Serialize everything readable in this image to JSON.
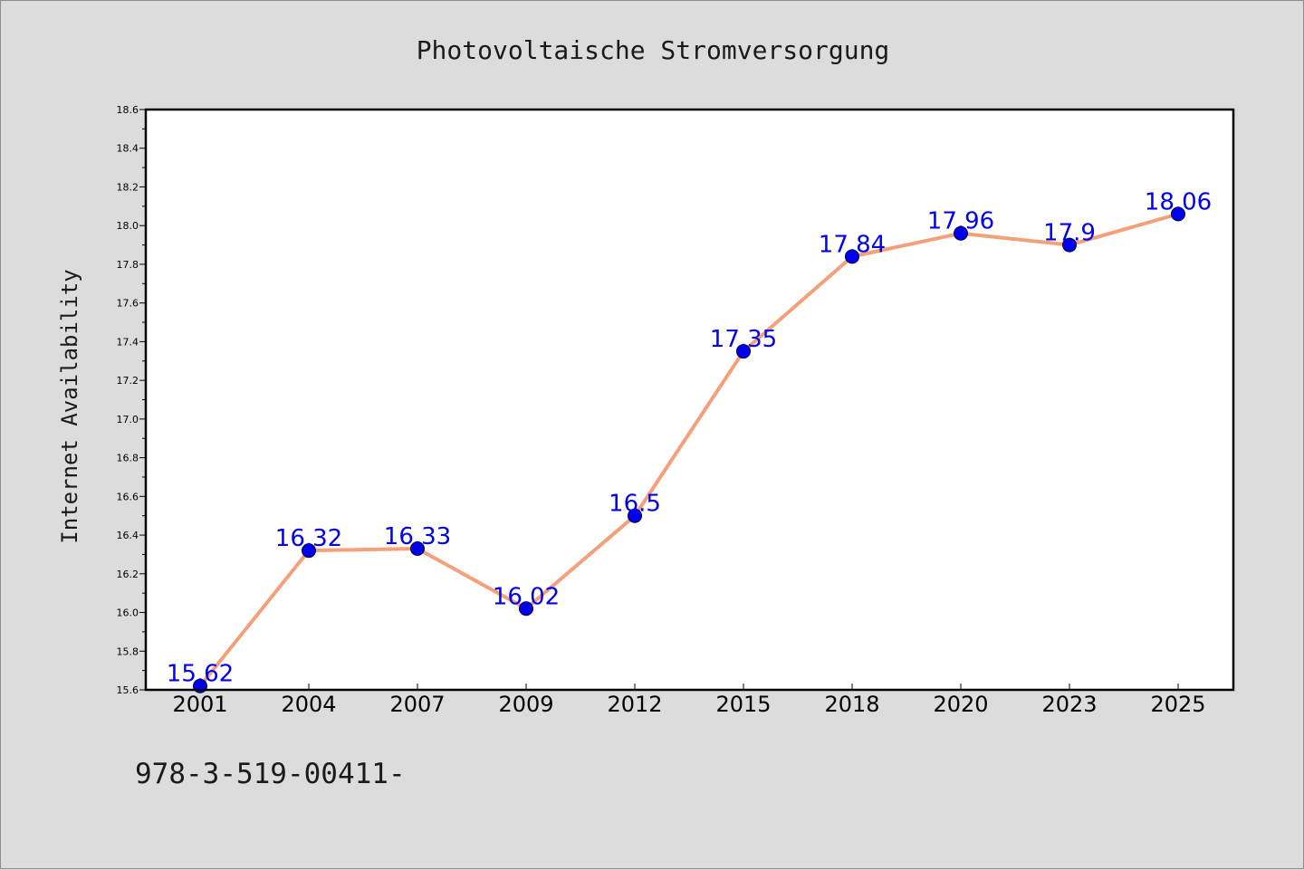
{
  "chart_data": {
    "type": "line",
    "title": "Photovoltaische Stromversorgung",
    "xlabel": "",
    "ylabel": "Internet Availability",
    "categories": [
      "2001",
      "2004",
      "2007",
      "2009",
      "2012",
      "2015",
      "2018",
      "2020",
      "2023",
      "2025"
    ],
    "series": [
      {
        "values": [
          15.62,
          16.32,
          16.33,
          16.02,
          16.5,
          17.35,
          17.84,
          17.96,
          17.9,
          18.06
        ],
        "data_labels": [
          "15.62",
          "16.32",
          "16.33",
          "16.02",
          "16.5",
          "17.35",
          "17.84",
          "17.96",
          "17.9",
          "18.06"
        ],
        "line_color": "#f4a07a",
        "marker_color": "#0000ee",
        "label_color": "#0000ee"
      }
    ],
    "ylim": [
      15.6,
      18.6
    ],
    "yticks": [
      "15.6",
      "15.8",
      "16.0",
      "16.2",
      "16.4",
      "16.6",
      "16.8",
      "17.0",
      "17.2",
      "17.4",
      "17.6",
      "17.8",
      "18.0",
      "18.2",
      "18.4",
      "18.6"
    ],
    "grid": false,
    "legend": "none"
  },
  "footnote": "978-3-519-00411-"
}
